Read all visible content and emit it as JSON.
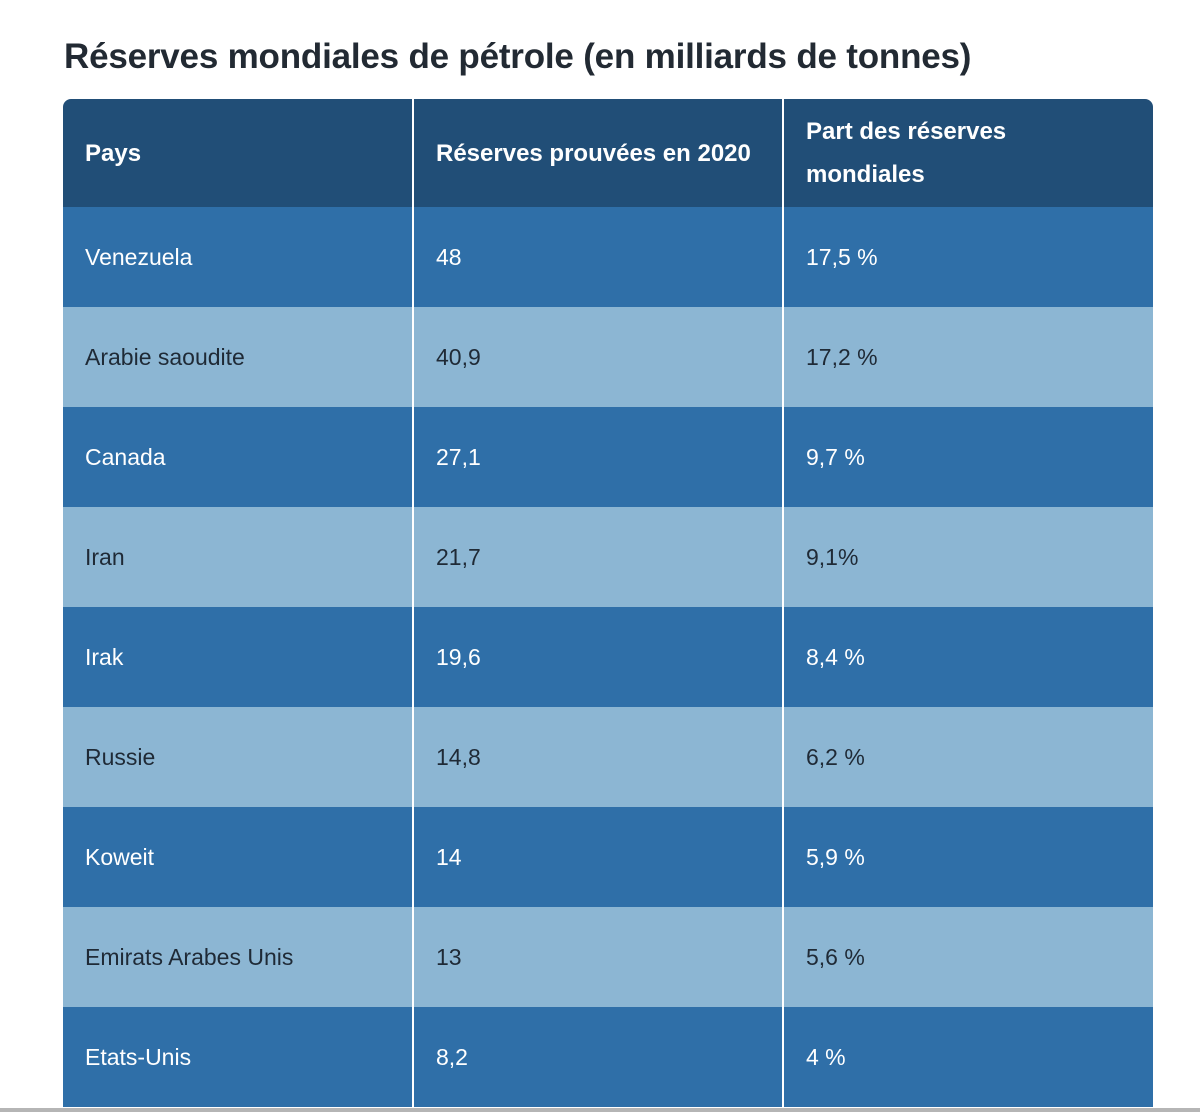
{
  "title": "Réserves mondiales de pétrole (en milliards de tonnes)",
  "table": {
    "headers": [
      "Pays",
      "Réserves prouvées en 2020",
      "Part des réserves mondiales"
    ],
    "rows": [
      [
        "Venezuela",
        "48",
        "17,5 %"
      ],
      [
        "Arabie saoudite",
        "40,9",
        "17,2 %"
      ],
      [
        "Canada",
        "27,1",
        "9,7 %"
      ],
      [
        "Iran",
        "21,7",
        "9,1%"
      ],
      [
        "Irak",
        "19,6",
        "8,4 %"
      ],
      [
        "Russie",
        "14,8",
        "6,2 %"
      ],
      [
        "Koweit",
        "14",
        "5,9 %"
      ],
      [
        "Emirats Arabes Unis",
        "13",
        "5,6 %"
      ],
      [
        "Etats-Unis",
        "8,2",
        "4 %"
      ]
    ]
  },
  "colors": {
    "header_bg": "#214e77",
    "row_dark": "#2f6fa8",
    "row_light": "#8cb6d3"
  }
}
